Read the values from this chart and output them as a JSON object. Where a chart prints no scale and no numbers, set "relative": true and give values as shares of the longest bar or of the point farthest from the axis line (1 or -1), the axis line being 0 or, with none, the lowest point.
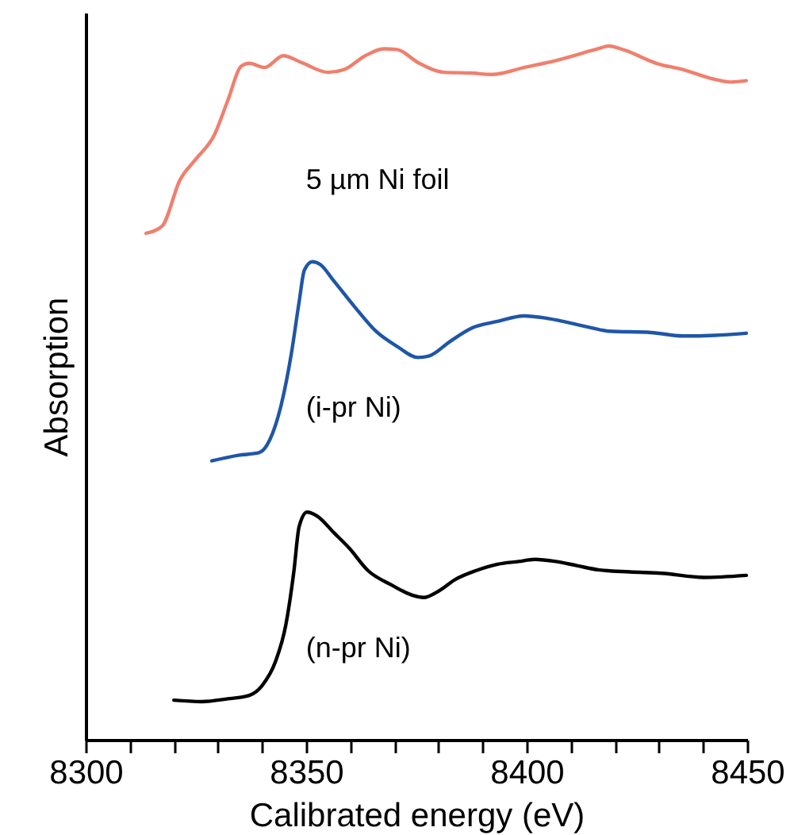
{
  "chart_data": {
    "type": "line",
    "xlabel": "Calibrated energy (eV)",
    "ylabel": "Absorption",
    "relative": true,
    "xlim": [
      8300,
      8450
    ],
    "xticks": [
      8300,
      {
        "value": 8310,
        "label": null
      },
      {
        "value": 8320,
        "label": null
      },
      {
        "value": 8330,
        "label": null
      },
      {
        "value": 8340,
        "label": null
      },
      8350,
      {
        "value": 8360,
        "label": null
      },
      {
        "value": 8370,
        "label": null
      },
      {
        "value": 8380,
        "label": null
      },
      {
        "value": 8390,
        "label": null
      },
      8400,
      {
        "value": 8410,
        "label": null
      },
      {
        "value": 8420,
        "label": null
      },
      {
        "value": 8430,
        "label": null
      },
      {
        "value": 8440,
        "label": null
      },
      8450
    ],
    "grid": false,
    "line_style": "solid",
    "marker": "none",
    "series": [
      {
        "color": "#f07f6e",
        "x": [
          8313.7,
          8317.3,
          8321.4,
          8325.0,
          8329.2,
          8332.2,
          8335.3,
          8337.1,
          8340.6,
          8344.8,
          8349.0,
          8355.0,
          8358.6,
          8363.4,
          8367.6,
          8370.6,
          8375.4,
          8381.4,
          8387.4,
          8392.2,
          8399.4,
          8406.6,
          8416.2,
          8418.6,
          8422.2,
          8429.4,
          8435.4,
          8442.6,
          8446.2,
          8449.8
        ],
        "values": [
          0.73,
          0.74,
          0.807,
          0.837,
          0.872,
          0.921,
          0.971,
          0.975,
          0.969,
          0.986,
          0.976,
          0.962,
          0.966,
          0.986,
          0.996,
          0.995,
          0.976,
          0.962,
          0.961,
          0.959,
          0.969,
          0.979,
          0.996,
          1.0,
          0.994,
          0.975,
          0.966,
          0.952,
          0.948,
          0.95
        ]
      },
      {
        "color": "#1f56a8",
        "x": [
          8328.6,
          8334.6,
          8339.4,
          8341.8,
          8344.2,
          8346.6,
          8348.4,
          8349.6,
          8351.4,
          8353.2,
          8356.2,
          8361.0,
          8365.8,
          8370.6,
          8375.4,
          8377.8,
          8382.6,
          8387.4,
          8393.4,
          8399.4,
          8404.2,
          8409.0,
          8413.8,
          8418.6,
          8428.2,
          8435.4,
          8442.6,
          8449.8
        ],
        "values": [
          0.402,
          0.41,
          0.414,
          0.433,
          0.479,
          0.555,
          0.631,
          0.677,
          0.689,
          0.685,
          0.662,
          0.624,
          0.589,
          0.567,
          0.551,
          0.553,
          0.574,
          0.593,
          0.603,
          0.611,
          0.608,
          0.602,
          0.595,
          0.589,
          0.587,
          0.582,
          0.583,
          0.586
        ]
      },
      {
        "color": "#000000",
        "x": [
          8320.0,
          8326.3,
          8332.2,
          8337.1,
          8340.0,
          8343.0,
          8345.4,
          8347.2,
          8348.4,
          8350.2,
          8352.6,
          8356.2,
          8359.8,
          8364.0,
          8369.4,
          8374.2,
          8376.6,
          8380.2,
          8383.8,
          8388.6,
          8393.4,
          8398.2,
          8401.8,
          8406.6,
          8411.4,
          8416.2,
          8423.4,
          8430.6,
          8440.2,
          8449.8
        ],
        "values": [
          0.057,
          0.055,
          0.059,
          0.064,
          0.078,
          0.112,
          0.166,
          0.242,
          0.307,
          0.328,
          0.322,
          0.299,
          0.276,
          0.244,
          0.223,
          0.208,
          0.205,
          0.215,
          0.231,
          0.244,
          0.253,
          0.257,
          0.26,
          0.257,
          0.251,
          0.245,
          0.242,
          0.24,
          0.234,
          0.237
        ]
      }
    ],
    "annotations": [
      "5 µm Ni foil",
      "(i-pr Ni)",
      "(n-pr Ni)"
    ]
  }
}
